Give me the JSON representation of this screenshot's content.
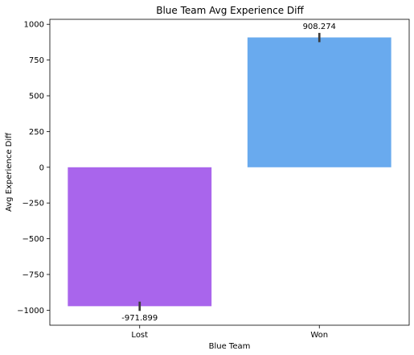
{
  "chart_data": {
    "type": "bar",
    "title": "Blue Team Avg Experience Diff",
    "xlabel": "Blue Team",
    "ylabel": "Avg Experience Diff",
    "categories": [
      "Lost",
      "Won"
    ],
    "values": [
      -971.899,
      908.274
    ],
    "value_labels": [
      "-971.899",
      "908.274"
    ],
    "error_bars": [
      [
        -1005,
        -940
      ],
      [
        875,
        940
      ]
    ],
    "colors": [
      "#a965ec",
      "#69aaee"
    ],
    "error_color": "#3c3c3c",
    "ylim": [
      -1105,
      1035
    ],
    "yticks": [
      -1000,
      -750,
      -500,
      -250,
      0,
      250,
      500,
      750,
      1000
    ],
    "ytick_labels": [
      "−1000",
      "−750",
      "−500",
      "−250",
      "0",
      "250",
      "500",
      "750",
      "1000"
    ],
    "grid": false,
    "legend": "none"
  }
}
